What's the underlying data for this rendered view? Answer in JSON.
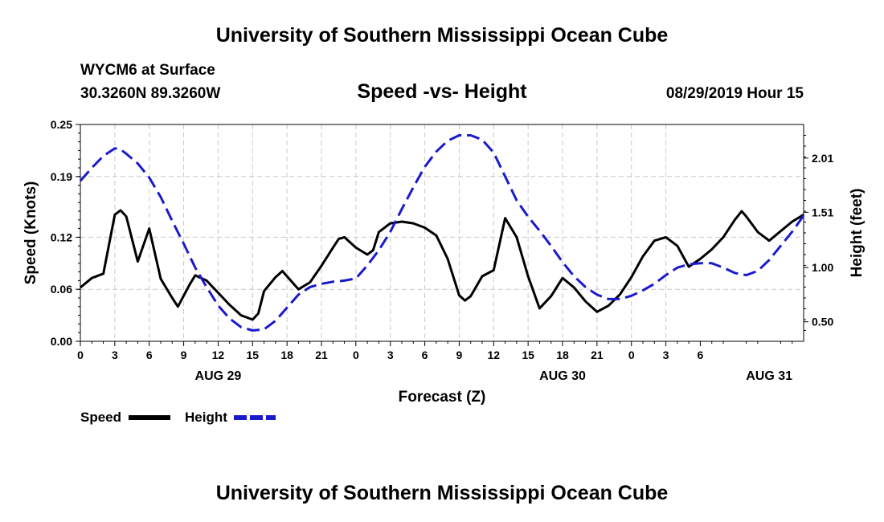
{
  "header": {
    "title": "University of Southern Mississippi Ocean Cube",
    "station": "WYCM6 at Surface",
    "coords": "30.3260N 89.3260W",
    "date_hour": "08/29/2019 Hour 15"
  },
  "footer": {
    "title": "University of Southern Mississippi Ocean Cube"
  },
  "colors": {
    "speed": "#000000",
    "height": "#1a1acc",
    "grid": "#c8c8c8"
  },
  "chart_data": {
    "type": "line",
    "title": "Speed -vs- Height",
    "xlabel": "Forecast (Z)",
    "ylabel_left": "Speed (Knots)",
    "ylabel_right": "Height (feet)",
    "x_hours": [
      0,
      63
    ],
    "x_tick_step": 3,
    "x_tick_labels": [
      "0",
      "3",
      "6",
      "9",
      "12",
      "15",
      "18",
      "21",
      "0",
      "3",
      "6",
      "9",
      "12",
      "15",
      "18",
      "21",
      "0",
      "3",
      "6"
    ],
    "day_labels": [
      {
        "label": "AUG 29",
        "hour": 12
      },
      {
        "label": "AUG 30",
        "hour": 42
      },
      {
        "label": "AUG 31",
        "hour": 60
      }
    ],
    "ylim_left": [
      0,
      0.25
    ],
    "yticks_left": [
      0.0,
      0.06,
      0.12,
      0.19,
      0.25
    ],
    "yticks_left_labels": [
      "0.00",
      "0.06",
      "0.12",
      "0.19",
      "0.25"
    ],
    "ylim_right": [
      0.32,
      2.32
    ],
    "yticks_right": [
      0.5,
      1.0,
      1.51,
      2.01
    ],
    "yticks_right_labels": [
      "0.50",
      "1.00",
      "1.51",
      "2.01"
    ],
    "legend": {
      "position": "bottom-left",
      "speed_label": "Speed",
      "height_label": "Height"
    },
    "series": [
      {
        "name": "Speed",
        "axis": "left",
        "style": "solid",
        "points": [
          [
            0,
            0.062
          ],
          [
            1,
            0.073
          ],
          [
            2,
            0.078
          ],
          [
            3,
            0.146
          ],
          [
            3.5,
            0.151
          ],
          [
            4,
            0.144
          ],
          [
            5,
            0.092
          ],
          [
            6,
            0.13
          ],
          [
            7,
            0.072
          ],
          [
            8,
            0.05
          ],
          [
            8.5,
            0.04
          ],
          [
            9.5,
            0.065
          ],
          [
            10,
            0.076
          ],
          [
            11,
            0.07
          ],
          [
            12,
            0.056
          ],
          [
            13,
            0.042
          ],
          [
            14,
            0.03
          ],
          [
            15,
            0.025
          ],
          [
            15.5,
            0.032
          ],
          [
            16,
            0.058
          ],
          [
            17,
            0.074
          ],
          [
            17.6,
            0.081
          ],
          [
            18,
            0.075
          ],
          [
            19,
            0.06
          ],
          [
            20,
            0.068
          ],
          [
            21,
            0.087
          ],
          [
            22,
            0.108
          ],
          [
            22.5,
            0.118
          ],
          [
            23,
            0.12
          ],
          [
            24,
            0.108
          ],
          [
            25,
            0.1
          ],
          [
            25.5,
            0.105
          ],
          [
            26,
            0.126
          ],
          [
            27,
            0.136
          ],
          [
            28,
            0.138
          ],
          [
            29,
            0.136
          ],
          [
            30,
            0.131
          ],
          [
            31,
            0.122
          ],
          [
            32,
            0.095
          ],
          [
            33,
            0.053
          ],
          [
            33.5,
            0.047
          ],
          [
            34,
            0.052
          ],
          [
            35,
            0.075
          ],
          [
            36,
            0.082
          ],
          [
            37,
            0.142
          ],
          [
            38,
            0.12
          ],
          [
            39,
            0.075
          ],
          [
            40,
            0.038
          ],
          [
            41,
            0.052
          ],
          [
            42,
            0.073
          ],
          [
            43,
            0.062
          ],
          [
            44,
            0.046
          ],
          [
            45,
            0.034
          ],
          [
            46,
            0.041
          ],
          [
            47,
            0.054
          ],
          [
            48,
            0.074
          ],
          [
            49,
            0.098
          ],
          [
            50,
            0.116
          ],
          [
            51,
            0.12
          ],
          [
            52,
            0.11
          ],
          [
            53,
            0.086
          ],
          [
            54,
            0.095
          ],
          [
            55,
            0.106
          ],
          [
            56,
            0.12
          ],
          [
            57,
            0.14
          ],
          [
            57.6,
            0.15
          ],
          [
            58,
            0.144
          ],
          [
            59,
            0.126
          ],
          [
            60,
            0.116
          ],
          [
            61,
            0.127
          ],
          [
            62,
            0.138
          ],
          [
            63,
            0.146
          ]
        ]
      },
      {
        "name": "Height",
        "axis": "right",
        "style": "dashed",
        "points": [
          [
            0,
            1.8
          ],
          [
            1,
            1.92
          ],
          [
            2,
            2.03
          ],
          [
            3,
            2.1
          ],
          [
            3.5,
            2.09
          ],
          [
            4,
            2.05
          ],
          [
            5,
            1.96
          ],
          [
            6,
            1.83
          ],
          [
            7,
            1.65
          ],
          [
            8,
            1.43
          ],
          [
            9,
            1.22
          ],
          [
            10,
            1.0
          ],
          [
            11,
            0.82
          ],
          [
            12,
            0.65
          ],
          [
            13,
            0.53
          ],
          [
            14,
            0.45
          ],
          [
            15,
            0.42
          ],
          [
            16,
            0.43
          ],
          [
            17,
            0.51
          ],
          [
            18,
            0.63
          ],
          [
            19,
            0.75
          ],
          [
            20,
            0.82
          ],
          [
            21,
            0.85
          ],
          [
            22,
            0.87
          ],
          [
            23,
            0.88
          ],
          [
            24,
            0.9
          ],
          [
            25,
            1.02
          ],
          [
            26,
            1.16
          ],
          [
            27,
            1.33
          ],
          [
            28,
            1.54
          ],
          [
            29,
            1.74
          ],
          [
            30,
            1.93
          ],
          [
            31,
            2.07
          ],
          [
            32,
            2.17
          ],
          [
            33,
            2.22
          ],
          [
            34,
            2.22
          ],
          [
            35,
            2.18
          ],
          [
            36,
            2.06
          ],
          [
            37,
            1.84
          ],
          [
            38,
            1.62
          ],
          [
            39,
            1.47
          ],
          [
            40,
            1.34
          ],
          [
            41,
            1.2
          ],
          [
            42,
            1.05
          ],
          [
            43,
            0.92
          ],
          [
            44,
            0.82
          ],
          [
            45,
            0.75
          ],
          [
            46,
            0.71
          ],
          [
            47,
            0.71
          ],
          [
            48,
            0.74
          ],
          [
            49,
            0.79
          ],
          [
            50,
            0.85
          ],
          [
            51,
            0.93
          ],
          [
            52,
            1.0
          ],
          [
            53,
            1.03
          ],
          [
            54,
            1.04
          ],
          [
            55,
            1.04
          ],
          [
            56,
            1.0
          ],
          [
            57,
            0.95
          ],
          [
            58,
            0.93
          ],
          [
            59,
            0.97
          ],
          [
            60,
            1.07
          ],
          [
            61,
            1.2
          ],
          [
            62,
            1.33
          ],
          [
            63,
            1.48
          ]
        ]
      }
    ]
  }
}
